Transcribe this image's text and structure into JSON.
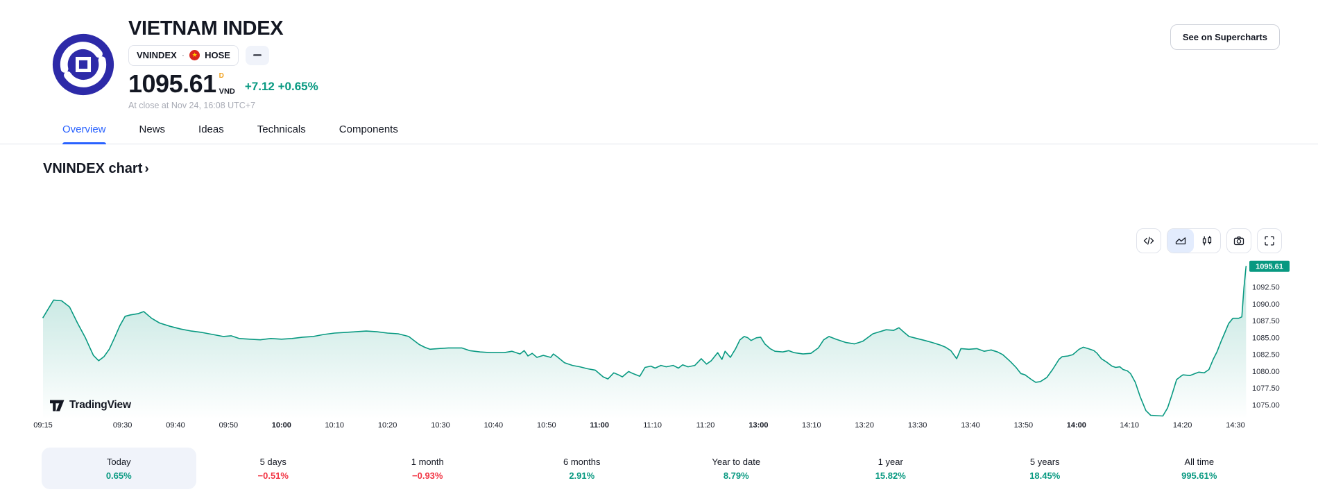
{
  "header": {
    "title": "VIETNAM INDEX",
    "symbol": "VNINDEX",
    "separator": "·",
    "exchange": "HOSE",
    "price": "1095.61",
    "interval_badge": "D",
    "currency": "VND",
    "change_abs": "+7.12",
    "change_pct": "+0.65%",
    "market_status": "At close at Nov 24, 16:08 UTC+7",
    "supercharts_button": "See on Supercharts"
  },
  "icons": {
    "flag_star_glyph": "★",
    "toolbar": [
      "code",
      "area-chart",
      "candles",
      "camera",
      "fullscreen"
    ]
  },
  "tabs": [
    {
      "label": "Overview",
      "active": true
    },
    {
      "label": "News",
      "active": false
    },
    {
      "label": "Ideas",
      "active": false
    },
    {
      "label": "Technicals",
      "active": false
    },
    {
      "label": "Components",
      "active": false
    }
  ],
  "section": {
    "chart_title": "VNINDEX chart",
    "chevron": "›"
  },
  "watermark": "TradingView",
  "colors": {
    "up": "#089981",
    "down": "#F23645",
    "accent": "#2962FF",
    "text": "#131722",
    "border": "#E0E3EB",
    "logo_blue": "#2D2AA8",
    "interval_amber": "#F0A11E",
    "flag_red": "#DA251D",
    "flag_yellow": "#FFCD00",
    "chip_bg": "#F0F3FA"
  },
  "chart_data": {
    "type": "area",
    "title": "VNINDEX intraday (1 day)",
    "line_color": "#089981",
    "last_label": "1095.61",
    "last_value": 1095.61,
    "y_ticks": [
      "1092.50",
      "1090.00",
      "1087.50",
      "1085.00",
      "1082.50",
      "1080.00",
      "1077.50",
      "1075.00"
    ],
    "y_tick_values": [
      1092.5,
      1090.0,
      1087.5,
      1085.0,
      1082.5,
      1080.0,
      1077.5,
      1075.0
    ],
    "ylim": [
      1073.0,
      1096.5
    ],
    "x_labels": [
      {
        "label": "09:15",
        "t": 0,
        "bold": false
      },
      {
        "label": "09:30",
        "t": 15,
        "bold": false
      },
      {
        "label": "09:40",
        "t": 25,
        "bold": false
      },
      {
        "label": "09:50",
        "t": 35,
        "bold": false
      },
      {
        "label": "10:00",
        "t": 45,
        "bold": true
      },
      {
        "label": "10:10",
        "t": 55,
        "bold": false
      },
      {
        "label": "10:20",
        "t": 65,
        "bold": false
      },
      {
        "label": "10:30",
        "t": 75,
        "bold": false
      },
      {
        "label": "10:40",
        "t": 85,
        "bold": false
      },
      {
        "label": "10:50",
        "t": 95,
        "bold": false
      },
      {
        "label": "11:00",
        "t": 105,
        "bold": true
      },
      {
        "label": "11:10",
        "t": 115,
        "bold": false
      },
      {
        "label": "11:20",
        "t": 125,
        "bold": false
      },
      {
        "label": "13:00",
        "t": 135,
        "bold": true
      },
      {
        "label": "13:10",
        "t": 145,
        "bold": false
      },
      {
        "label": "13:20",
        "t": 155,
        "bold": false
      },
      {
        "label": "13:30",
        "t": 165,
        "bold": false
      },
      {
        "label": "13:40",
        "t": 175,
        "bold": false
      },
      {
        "label": "13:50",
        "t": 185,
        "bold": false
      },
      {
        "label": "14:00",
        "t": 195,
        "bold": true
      },
      {
        "label": "14:10",
        "t": 205,
        "bold": false
      },
      {
        "label": "14:20",
        "t": 215,
        "bold": false
      },
      {
        "label": "14:30",
        "t": 225,
        "bold": false
      }
    ],
    "session_note": "t = minutes since 09:15 with 11:30-13:00 lunch break compressed out",
    "points": [
      [
        0,
        1088.0
      ],
      [
        1,
        1089.3
      ],
      [
        2,
        1090.6
      ],
      [
        3.5,
        1090.5
      ],
      [
        5,
        1089.6
      ],
      [
        6.5,
        1087.2
      ],
      [
        8,
        1085.0
      ],
      [
        9.5,
        1082.4
      ],
      [
        10.5,
        1081.6
      ],
      [
        11.5,
        1082.2
      ],
      [
        12.5,
        1083.3
      ],
      [
        13.5,
        1085.0
      ],
      [
        14.5,
        1086.8
      ],
      [
        15.5,
        1088.2
      ],
      [
        16.5,
        1088.4
      ],
      [
        18,
        1088.6
      ],
      [
        19,
        1088.9
      ],
      [
        20.5,
        1087.9
      ],
      [
        22,
        1087.2
      ],
      [
        24,
        1086.7
      ],
      [
        26,
        1086.3
      ],
      [
        28,
        1086.0
      ],
      [
        30,
        1085.8
      ],
      [
        32,
        1085.5
      ],
      [
        34,
        1085.2
      ],
      [
        35.5,
        1085.3
      ],
      [
        37,
        1084.9
      ],
      [
        39,
        1084.8
      ],
      [
        41,
        1084.7
      ],
      [
        43,
        1084.9
      ],
      [
        45,
        1084.8
      ],
      [
        47,
        1084.9
      ],
      [
        49,
        1085.1
      ],
      [
        51,
        1085.2
      ],
      [
        53,
        1085.5
      ],
      [
        55,
        1085.7
      ],
      [
        57,
        1085.8
      ],
      [
        59,
        1085.9
      ],
      [
        61,
        1086.0
      ],
      [
        63,
        1085.9
      ],
      [
        65,
        1085.7
      ],
      [
        67,
        1085.6
      ],
      [
        69,
        1085.2
      ],
      [
        70,
        1084.6
      ],
      [
        71,
        1084.0
      ],
      [
        72,
        1083.6
      ],
      [
        73,
        1083.3
      ],
      [
        74.5,
        1083.4
      ],
      [
        76.5,
        1083.5
      ],
      [
        79,
        1083.5
      ],
      [
        80.5,
        1083.1
      ],
      [
        82.5,
        1082.9
      ],
      [
        84.5,
        1082.8
      ],
      [
        87,
        1082.8
      ],
      [
        88.5,
        1083.0
      ],
      [
        90,
        1082.6
      ],
      [
        90.8,
        1083.1
      ],
      [
        91.5,
        1082.3
      ],
      [
        92.3,
        1082.7
      ],
      [
        93.2,
        1082.1
      ],
      [
        94.4,
        1082.4
      ],
      [
        95.8,
        1082.1
      ],
      [
        96.3,
        1082.6
      ],
      [
        97,
        1082.2
      ],
      [
        98.4,
        1081.3
      ],
      [
        99.9,
        1080.9
      ],
      [
        101.3,
        1080.7
      ],
      [
        102.8,
        1080.4
      ],
      [
        104.2,
        1080.2
      ],
      [
        105.7,
        1079.2
      ],
      [
        106.6,
        1078.9
      ],
      [
        107.7,
        1079.8
      ],
      [
        108.6,
        1079.5
      ],
      [
        109.3,
        1079.2
      ],
      [
        110.5,
        1080.0
      ],
      [
        111.3,
        1079.7
      ],
      [
        112.6,
        1079.3
      ],
      [
        113.6,
        1080.6
      ],
      [
        114.7,
        1080.8
      ],
      [
        115.5,
        1080.5
      ],
      [
        116.6,
        1080.9
      ],
      [
        117.6,
        1080.7
      ],
      [
        118.9,
        1080.9
      ],
      [
        119.9,
        1080.5
      ],
      [
        120.7,
        1081.0
      ],
      [
        121.7,
        1080.7
      ],
      [
        123,
        1080.9
      ],
      [
        124.2,
        1081.9
      ],
      [
        125.2,
        1081.1
      ],
      [
        126.1,
        1081.6
      ],
      [
        127.3,
        1082.8
      ],
      [
        128.1,
        1081.8
      ],
      [
        128.7,
        1083.0
      ],
      [
        129.7,
        1082.1
      ],
      [
        130.7,
        1083.4
      ],
      [
        131.5,
        1084.7
      ],
      [
        132.3,
        1085.2
      ],
      [
        133,
        1085.0
      ],
      [
        133.6,
        1084.6
      ],
      [
        134.6,
        1085.0
      ],
      [
        135.4,
        1085.1
      ],
      [
        136.2,
        1084.1
      ],
      [
        137.2,
        1083.4
      ],
      [
        138.1,
        1083.0
      ],
      [
        139.6,
        1082.9
      ],
      [
        140.7,
        1083.1
      ],
      [
        141.7,
        1082.8
      ],
      [
        143.4,
        1082.6
      ],
      [
        144.9,
        1082.7
      ],
      [
        146.3,
        1083.5
      ],
      [
        147.3,
        1084.7
      ],
      [
        148.3,
        1085.2
      ],
      [
        149.6,
        1084.8
      ],
      [
        151.5,
        1084.3
      ],
      [
        153.1,
        1084.1
      ],
      [
        154.7,
        1084.5
      ],
      [
        156.6,
        1085.6
      ],
      [
        159.1,
        1086.2
      ],
      [
        160.5,
        1086.1
      ],
      [
        161.5,
        1086.5
      ],
      [
        162.5,
        1085.8
      ],
      [
        163.4,
        1085.2
      ],
      [
        164.9,
        1084.9
      ],
      [
        166.4,
        1084.6
      ],
      [
        167.8,
        1084.3
      ],
      [
        169.4,
        1083.9
      ],
      [
        170.3,
        1083.6
      ],
      [
        171.3,
        1083.1
      ],
      [
        172.4,
        1081.9
      ],
      [
        173.2,
        1083.4
      ],
      [
        174.7,
        1083.3
      ],
      [
        176.2,
        1083.4
      ],
      [
        177.6,
        1083.0
      ],
      [
        178.9,
        1083.2
      ],
      [
        180.1,
        1082.9
      ],
      [
        181.1,
        1082.5
      ],
      [
        182.5,
        1081.5
      ],
      [
        183.6,
        1080.6
      ],
      [
        184.5,
        1079.7
      ],
      [
        185.3,
        1079.5
      ],
      [
        186.5,
        1078.8
      ],
      [
        187.3,
        1078.4
      ],
      [
        188.2,
        1078.5
      ],
      [
        189.4,
        1079.1
      ],
      [
        190.5,
        1080.3
      ],
      [
        191.7,
        1081.8
      ],
      [
        192.3,
        1082.2
      ],
      [
        193.4,
        1082.3
      ],
      [
        194.3,
        1082.5
      ],
      [
        195.5,
        1083.3
      ],
      [
        196.3,
        1083.6
      ],
      [
        197.2,
        1083.4
      ],
      [
        198.3,
        1083.1
      ],
      [
        198.9,
        1082.7
      ],
      [
        199.7,
        1081.9
      ],
      [
        200.7,
        1081.4
      ],
      [
        201.7,
        1080.8
      ],
      [
        202.4,
        1080.6
      ],
      [
        203.2,
        1080.7
      ],
      [
        203.8,
        1080.3
      ],
      [
        204.6,
        1080.1
      ],
      [
        205.2,
        1079.7
      ],
      [
        206.1,
        1078.4
      ],
      [
        207,
        1076.3
      ],
      [
        208.1,
        1074.2
      ],
      [
        209,
        1073.5
      ],
      [
        211.3,
        1073.4
      ],
      [
        212.2,
        1074.6
      ],
      [
        213,
        1076.5
      ],
      [
        213.9,
        1078.8
      ],
      [
        214.7,
        1079.3
      ],
      [
        215.1,
        1079.5
      ],
      [
        216.4,
        1079.4
      ],
      [
        217.4,
        1079.7
      ],
      [
        218.1,
        1079.9
      ],
      [
        219.1,
        1079.8
      ],
      [
        220,
        1080.3
      ],
      [
        220.8,
        1081.8
      ],
      [
        221.5,
        1082.9
      ],
      [
        222.3,
        1084.5
      ],
      [
        222.9,
        1085.6
      ],
      [
        223.7,
        1087.1
      ],
      [
        224.5,
        1087.9
      ],
      [
        225.6,
        1087.9
      ],
      [
        226.2,
        1088.1
      ],
      [
        226.6,
        1092.4
      ],
      [
        227,
        1095.61
      ]
    ]
  },
  "performance": [
    {
      "label": "Today",
      "value": "0.65%",
      "dir": "up",
      "active": true
    },
    {
      "label": "5 days",
      "value": "−0.51%",
      "dir": "down",
      "active": false
    },
    {
      "label": "1 month",
      "value": "−0.93%",
      "dir": "down",
      "active": false
    },
    {
      "label": "6 months",
      "value": "2.91%",
      "dir": "up",
      "active": false
    },
    {
      "label": "Year to date",
      "value": "8.79%",
      "dir": "up",
      "active": false
    },
    {
      "label": "1 year",
      "value": "15.82%",
      "dir": "up",
      "active": false
    },
    {
      "label": "5 years",
      "value": "18.45%",
      "dir": "up",
      "active": false
    },
    {
      "label": "All time",
      "value": "995.61%",
      "dir": "up",
      "active": false
    }
  ]
}
